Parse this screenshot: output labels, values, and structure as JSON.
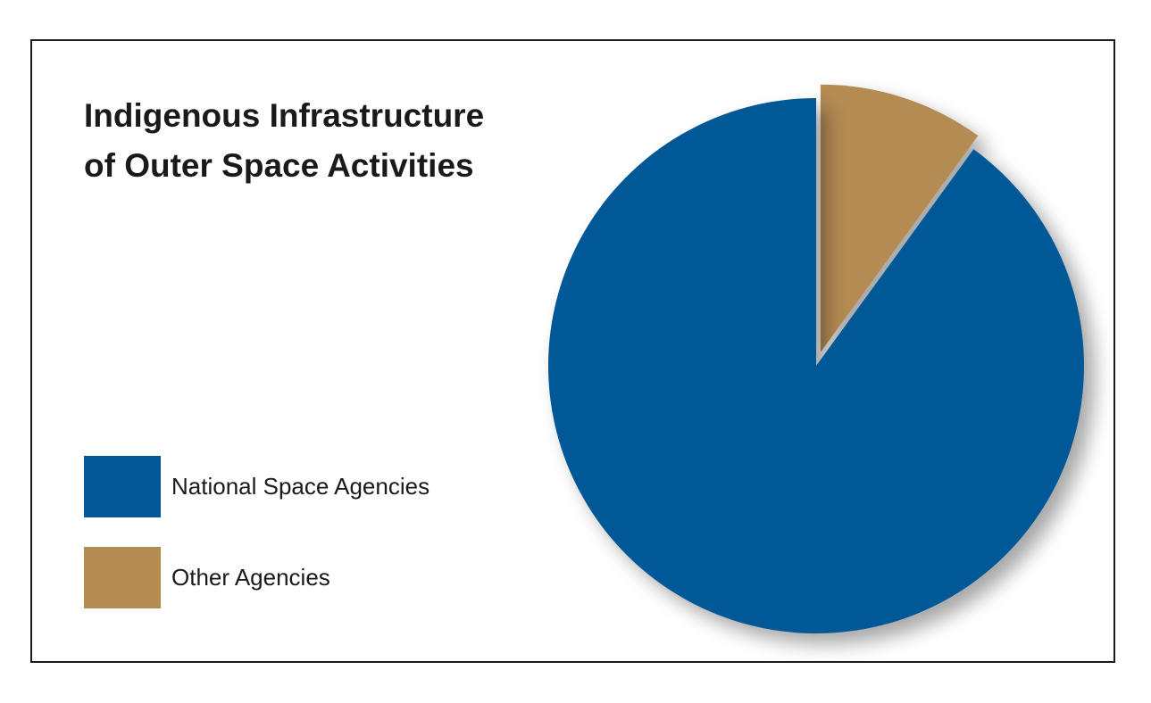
{
  "chart_data": {
    "type": "pie",
    "title_lines": [
      "Indigenous Infrastructure",
      "of Outer Space Activities"
    ],
    "slices": [
      {
        "label": "National Space Agencies",
        "value": 90,
        "color": "#025896"
      },
      {
        "label": "Other Agencies",
        "value": 10,
        "color": "#b38b53",
        "exploded": true
      }
    ],
    "legend_position": "bottom-left"
  }
}
